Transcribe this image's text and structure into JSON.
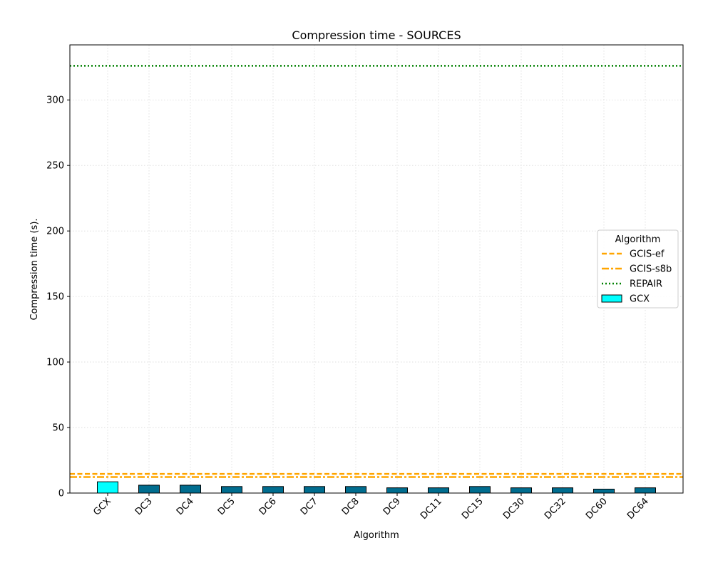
{
  "chart_data": {
    "type": "bar",
    "title": "Compression time -  SOURCES",
    "xlabel": "Algorithm",
    "ylabel": "Compression time (s).",
    "ylim": [
      0,
      342
    ],
    "yticks": [
      0,
      50,
      100,
      150,
      200,
      250,
      300
    ],
    "grid": true,
    "legend_title": "Algorithm",
    "legend_position": "center-right",
    "categories": [
      "GCX",
      "DC3",
      "DC4",
      "DC5",
      "DC6",
      "DC7",
      "DC8",
      "DC9",
      "DC11",
      "DC15",
      "DC30",
      "DC32",
      "DC60",
      "DC64"
    ],
    "values": [
      8.6,
      6.0,
      6.0,
      5.0,
      5.0,
      5.0,
      5.0,
      4.0,
      4.0,
      5.0,
      4.0,
      4.0,
      3.0,
      4.0
    ],
    "bar_colors": [
      "#00ffff",
      "#006d8f",
      "#006d8f",
      "#006d8f",
      "#006d8f",
      "#006d8f",
      "#006d8f",
      "#006d8f",
      "#006d8f",
      "#006d8f",
      "#006d8f",
      "#006d8f",
      "#006d8f",
      "#006d8f"
    ],
    "bar_series_name": "GCX",
    "bar_legend_color": "#00ffff",
    "reference_lines": [
      {
        "name": "GCIS-ef",
        "value": 14.6,
        "color": "#ffa500",
        "style": "dashed"
      },
      {
        "name": "GCIS-s8b",
        "value": 12.2,
        "color": "#ffa500",
        "style": "dashdot"
      },
      {
        "name": "REPAIR",
        "value": 326.0,
        "color": "#008000",
        "style": "dotted"
      }
    ]
  }
}
